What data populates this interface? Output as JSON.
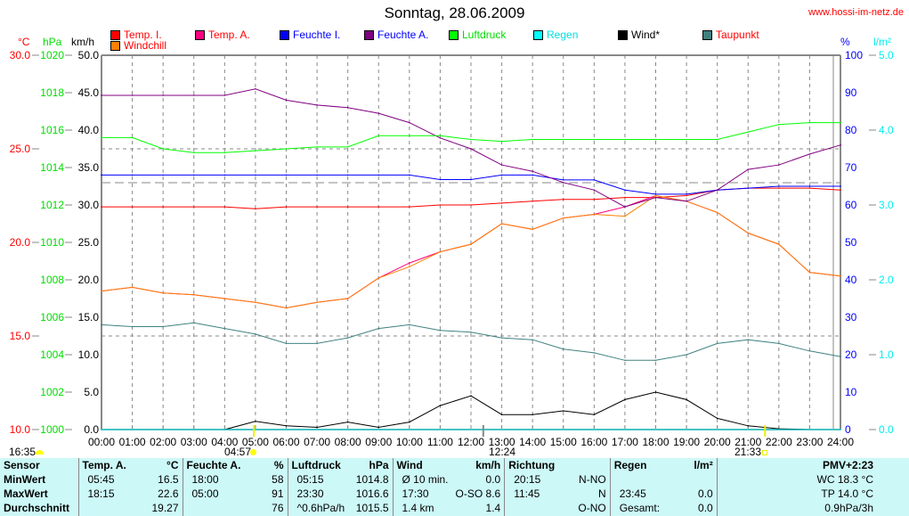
{
  "header": {
    "title": "Sonntag, 28.06.2009",
    "url": "www.hossi-im-netz.de"
  },
  "legend": [
    {
      "label": "Temp. I.",
      "color": "#ff0000",
      "text_color": "#ff0000"
    },
    {
      "label": "Temp. A.",
      "color": "#ff0080",
      "text_color": "#ff0000"
    },
    {
      "label": "Feuchte I.",
      "color": "#0000ff",
      "text_color": "#0000ff"
    },
    {
      "label": "Feuchte A.",
      "color": "#800080",
      "text_color": "#0000ff"
    },
    {
      "label": "Luftdruck",
      "color": "#00ff00",
      "text_color": "#00dd00"
    },
    {
      "label": "Regen",
      "color": "#00ffff",
      "text_color": "#00e0e0"
    },
    {
      "label": "Wind*",
      "color": "#000000",
      "text_color": "#000000"
    },
    {
      "label": "Taupunkt",
      "color": "#408080",
      "text_color": "#ff0000"
    },
    {
      "label": "Windchill",
      "color": "#ff8000",
      "text_color": "#ff0000"
    }
  ],
  "axes": {
    "celsius": {
      "unit": "°C",
      "ticks": [
        "30.0",
        "25.0",
        "20.0",
        "15.0",
        "10.0"
      ]
    },
    "hpa": {
      "unit": "hPa",
      "ticks": [
        "1020",
        "1018",
        "1016",
        "1014",
        "1012",
        "1010",
        "1008",
        "1006",
        "1004",
        "1002",
        "1000"
      ]
    },
    "kmh": {
      "unit": "km/h",
      "ticks": [
        "50.0",
        "45.0",
        "40.0",
        "35.0",
        "30.0",
        "25.0",
        "20.0",
        "15.0",
        "10.0",
        "5.0",
        "0.0"
      ]
    },
    "percent": {
      "unit": "%",
      "ticks": [
        "100",
        "90",
        "80",
        "70",
        "60",
        "50",
        "40",
        "30",
        "20",
        "10",
        "0"
      ]
    },
    "rain": {
      "unit": "l/m²",
      "ticks": [
        "5.0",
        "4.0",
        "3.0",
        "2.0",
        "1.0",
        "0.0"
      ]
    },
    "time": [
      "00:00",
      "01:00",
      "02:00",
      "03:00",
      "04:00",
      "05:00",
      "06:00",
      "07:00",
      "08:00",
      "09:00",
      "10:00",
      "11:00",
      "12:00",
      "13:00",
      "14:00",
      "15:00",
      "16:00",
      "17:00",
      "18:00",
      "19:00",
      "20:00",
      "21:00",
      "22:00",
      "23:00",
      "24:00"
    ]
  },
  "events": {
    "moonset": "16:35",
    "sunrise": "04:57",
    "noon": "12:24",
    "sunset": "21:33"
  },
  "chart_data": {
    "type": "line",
    "title": "Sonntag, 28.06.2009",
    "x": [
      0,
      1,
      2,
      3,
      4,
      5,
      6,
      7,
      8,
      9,
      10,
      11,
      12,
      13,
      14,
      15,
      16,
      17,
      18,
      19,
      20,
      21,
      22,
      23,
      24
    ],
    "series": [
      {
        "name": "Temp. I.",
        "axis": "celsius",
        "color": "#ff0000",
        "values": [
          21.9,
          21.9,
          21.9,
          21.9,
          21.9,
          21.8,
          21.9,
          21.9,
          21.9,
          21.9,
          21.9,
          22.0,
          22.0,
          22.1,
          22.2,
          22.3,
          22.3,
          22.4,
          22.4,
          22.5,
          22.8,
          22.9,
          22.9,
          22.9,
          22.8
        ]
      },
      {
        "name": "Temp. A.",
        "axis": "celsius",
        "color": "#ff0080",
        "values": [
          17.4,
          17.6,
          17.3,
          17.2,
          17.0,
          16.8,
          16.5,
          16.8,
          17.0,
          18.1,
          18.9,
          19.5,
          19.9,
          21.0,
          20.7,
          21.3,
          21.5,
          21.9,
          22.5,
          22.2,
          21.6,
          20.5,
          19.9,
          18.4,
          18.2
        ]
      },
      {
        "name": "Windchill",
        "axis": "celsius",
        "color": "#ff8000",
        "values": [
          17.4,
          17.6,
          17.3,
          17.2,
          17.0,
          16.8,
          16.5,
          16.8,
          17.0,
          18.1,
          18.7,
          19.5,
          19.9,
          21.0,
          20.7,
          21.3,
          21.5,
          21.4,
          22.5,
          22.2,
          21.6,
          20.5,
          19.9,
          18.4,
          18.2
        ]
      },
      {
        "name": "Feuchte I.",
        "axis": "percent",
        "color": "#0000ff",
        "values": [
          68,
          68,
          68,
          68,
          68,
          68,
          68,
          68,
          68,
          68,
          68,
          66.8,
          66.8,
          68,
          68,
          66.7,
          66.7,
          64,
          62.9,
          62.9,
          64,
          64.5,
          65,
          65,
          65
        ]
      },
      {
        "name": "Feuchte A.",
        "axis": "percent",
        "color": "#800080",
        "values": [
          89.3,
          89.3,
          89.3,
          89.3,
          89.3,
          91,
          88,
          86.7,
          86,
          84.5,
          82,
          77.9,
          75,
          70.7,
          69,
          66,
          64,
          59.5,
          62,
          61,
          64,
          69.5,
          70.7,
          73.6,
          76
        ]
      },
      {
        "name": "Luftdruck",
        "axis": "hpa",
        "color": "#00ff00",
        "values": [
          1015.6,
          1015.6,
          1015.0,
          1014.8,
          1014.8,
          1014.9,
          1015.0,
          1015.1,
          1015.1,
          1015.7,
          1015.7,
          1015.7,
          1015.5,
          1015.4,
          1015.5,
          1015.5,
          1015.5,
          1015.5,
          1015.5,
          1015.5,
          1015.5,
          1015.9,
          1016.3,
          1016.4,
          1016.4
        ]
      },
      {
        "name": "Taupunkt",
        "axis": "celsius",
        "color": "#408080",
        "values": [
          15.6,
          15.5,
          15.5,
          15.7,
          15.4,
          15.1,
          14.6,
          14.6,
          14.9,
          15.4,
          15.6,
          15.3,
          15.2,
          14.9,
          14.8,
          14.3,
          14.1,
          13.7,
          13.7,
          14.0,
          14.6,
          14.8,
          14.6,
          14.2,
          13.9
        ]
      },
      {
        "name": "Wind*",
        "axis": "kmh",
        "color": "#000000",
        "values": [
          0,
          0,
          0,
          0,
          0,
          1.1,
          0.5,
          0.3,
          1.0,
          0.3,
          1.0,
          3.2,
          4.5,
          2.0,
          2.0,
          2.5,
          2.0,
          4.0,
          5.0,
          4.0,
          1.5,
          0.5,
          0.1,
          0,
          0
        ]
      },
      {
        "name": "Regen",
        "axis": "rain",
        "color": "#00ffff",
        "values": [
          0,
          0,
          0,
          0,
          0,
          0,
          0,
          0,
          0,
          0,
          0,
          0,
          0,
          0,
          0,
          0,
          0,
          0,
          0,
          0,
          0,
          0,
          0,
          0,
          0
        ]
      }
    ],
    "ranges": {
      "celsius": [
        10,
        30
      ],
      "hpa": [
        1000,
        1020
      ],
      "kmh": [
        0,
        50
      ],
      "percent": [
        0,
        100
      ],
      "rain": [
        0,
        5
      ]
    },
    "xlabel": "",
    "grid": true,
    "legend": "top"
  },
  "table": {
    "headers": {
      "sensor": "Sensor",
      "temp": "Temp. A.",
      "temp_unit": "°C",
      "hum": "Feuchte A.",
      "hum_unit": "%",
      "press": "Luftdruck",
      "press_unit": "hPa",
      "wind": "Wind",
      "wind_unit": "km/h",
      "dir": "Richtung",
      "rain": "Regen",
      "rain_unit": "l/m²",
      "pmv": "PMV+2:23"
    },
    "rows": [
      {
        "label": "MinWert",
        "t_time": "05:45",
        "t_val": "16.5",
        "h_time": "18:00",
        "h_val": "58",
        "p_time": "05:15",
        "p_val": "1014.8",
        "w_time": "Ø 10 min.",
        "w_val": "0.0",
        "d_time": "20:15",
        "d_val": "N-NO",
        "r_time": "",
        "r_val": "",
        "pmv": "WC 18.3 °C"
      },
      {
        "label": "MaxWert",
        "t_time": "18:15",
        "t_val": "22.6",
        "h_time": "05:00",
        "h_val": "91",
        "p_time": "23:30",
        "p_val": "1016.6",
        "w_time": "17:30",
        "w_val": "O-SO 8.6",
        "d_time": "11:45",
        "d_val": "N",
        "r_time": "23:45",
        "r_val": "0.0",
        "pmv": "TP 14.0 °C"
      },
      {
        "label": "Durchschnitt",
        "t_time": "",
        "t_val": "19.27",
        "h_time": "",
        "h_val": "76",
        "p_time": "^0.6hPa/h",
        "p_val": "1015.5",
        "w_time": "1.4 km",
        "w_val": "1.4",
        "d_time": "",
        "d_val": "O-NO",
        "r_time": "Gesamt:",
        "r_val": "0.0",
        "pmv": "0.9hPa/3h"
      }
    ]
  }
}
